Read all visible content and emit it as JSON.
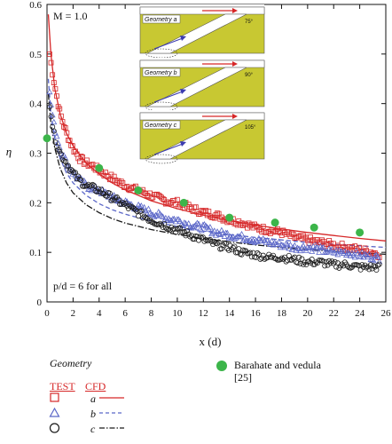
{
  "chart_data": {
    "type": "scatter",
    "xlabel": "x (d)",
    "ylabel": "η",
    "xlim": [
      0,
      26
    ],
    "ylim": [
      0,
      0.6
    ],
    "xticks": [
      "0",
      "2",
      "4",
      "6",
      "8",
      "10",
      "12",
      "14",
      "16",
      "18",
      "20",
      "22",
      "24",
      "26"
    ],
    "yticks": [
      "0",
      "0.1",
      "0.2",
      "0.3",
      "0.4",
      "0.5",
      "0.6"
    ],
    "annotations": {
      "mach": "M = 1.0",
      "pd": "p/d = 6 for all"
    },
    "insets": [
      {
        "label": "Geometry a",
        "angle": "75°"
      },
      {
        "label": "Geometry b",
        "angle": "90°"
      },
      {
        "label": "Geometry c",
        "angle": "105°"
      }
    ],
    "legend": {
      "title": "Geometry",
      "test_header": "TEST",
      "cfd_header": "CFD",
      "rows": [
        {
          "name": "a",
          "marker": "square",
          "line": "solid"
        },
        {
          "name": "b",
          "marker": "triangle",
          "line": "dashed"
        },
        {
          "name": "c",
          "marker": "circle",
          "line": "dashdot"
        }
      ],
      "reference": "Barahate and vedula [25]"
    },
    "colors": {
      "a": "#d62728",
      "b": "#5b67c8",
      "c": "#1a1a1a",
      "reference": "#3cb54a",
      "inset_fill": "#c8c832"
    },
    "series": [
      {
        "name": "a",
        "kind": "test",
        "x": [
          0.2,
          0.5,
          1,
          1.5,
          2,
          2.5,
          3,
          3.5,
          4,
          5,
          6,
          7,
          8,
          9,
          10,
          11,
          12,
          13,
          14,
          15,
          16,
          17,
          18,
          19,
          20,
          21,
          22,
          23,
          24,
          25,
          25.6
        ],
        "y": [
          0.5,
          0.45,
          0.38,
          0.34,
          0.31,
          0.29,
          0.28,
          0.275,
          0.265,
          0.25,
          0.235,
          0.225,
          0.215,
          0.205,
          0.2,
          0.19,
          0.18,
          0.175,
          0.165,
          0.16,
          0.15,
          0.145,
          0.14,
          0.13,
          0.125,
          0.12,
          0.115,
          0.11,
          0.105,
          0.1,
          0.095
        ]
      },
      {
        "name": "b",
        "kind": "test",
        "x": [
          0.2,
          0.5,
          1,
          1.5,
          2,
          2.5,
          3,
          3.5,
          4,
          5,
          6,
          7,
          8,
          9,
          10,
          11,
          12,
          13,
          14,
          15,
          16,
          17,
          18,
          19,
          20,
          21,
          22,
          23,
          24,
          25,
          25.6
        ],
        "y": [
          0.42,
          0.36,
          0.31,
          0.28,
          0.26,
          0.245,
          0.235,
          0.228,
          0.225,
          0.21,
          0.2,
          0.19,
          0.18,
          0.17,
          0.165,
          0.155,
          0.15,
          0.14,
          0.135,
          0.13,
          0.125,
          0.12,
          0.115,
          0.11,
          0.11,
          0.105,
          0.1,
          0.1,
          0.095,
          0.09,
          0.088
        ]
      },
      {
        "name": "c",
        "kind": "test",
        "x": [
          0.2,
          0.5,
          1,
          1.5,
          2,
          2.5,
          3,
          3.5,
          4,
          5,
          6,
          7,
          8,
          9,
          10,
          11,
          12,
          13,
          14,
          15,
          16,
          17,
          18,
          19,
          20,
          21,
          22,
          23,
          24,
          25,
          25.6
        ],
        "y": [
          0.4,
          0.34,
          0.3,
          0.28,
          0.26,
          0.245,
          0.235,
          0.23,
          0.225,
          0.21,
          0.195,
          0.18,
          0.165,
          0.155,
          0.145,
          0.135,
          0.125,
          0.115,
          0.11,
          0.1,
          0.095,
          0.09,
          0.09,
          0.085,
          0.08,
          0.08,
          0.075,
          0.075,
          0.07,
          0.07,
          0.07
        ]
      },
      {
        "name": "a",
        "kind": "cfd",
        "x": [
          0.1,
          0.3,
          0.6,
          1,
          1.5,
          2,
          3,
          4,
          5,
          6,
          8,
          10,
          12,
          14,
          16,
          18,
          20,
          22,
          24,
          26
        ],
        "y": [
          0.58,
          0.5,
          0.43,
          0.38,
          0.34,
          0.315,
          0.28,
          0.258,
          0.24,
          0.226,
          0.204,
          0.188,
          0.175,
          0.164,
          0.155,
          0.147,
          0.14,
          0.134,
          0.128,
          0.123
        ]
      },
      {
        "name": "b",
        "kind": "cfd",
        "x": [
          0.1,
          0.3,
          0.6,
          1,
          1.5,
          2,
          3,
          4,
          5,
          6,
          8,
          10,
          12,
          14,
          16,
          18,
          20,
          22,
          24,
          26
        ],
        "y": [
          0.45,
          0.38,
          0.33,
          0.29,
          0.26,
          0.24,
          0.215,
          0.198,
          0.186,
          0.177,
          0.163,
          0.152,
          0.143,
          0.136,
          0.13,
          0.125,
          0.12,
          0.116,
          0.113,
          0.11
        ]
      },
      {
        "name": "c",
        "kind": "cfd",
        "x": [
          0.1,
          0.3,
          0.6,
          1,
          1.5,
          2,
          3,
          4,
          5,
          6,
          8,
          10,
          12,
          14,
          16,
          18,
          20,
          22,
          24,
          26
        ],
        "y": [
          0.42,
          0.36,
          0.31,
          0.27,
          0.24,
          0.22,
          0.196,
          0.18,
          0.168,
          0.159,
          0.146,
          0.136,
          0.128,
          0.121,
          0.115,
          0.11,
          0.106,
          0.102,
          0.099,
          0.096
        ]
      },
      {
        "name": "Barahate and vedula [25]",
        "kind": "reference",
        "x": [
          0,
          4,
          7,
          10.5,
          14,
          17.5,
          20.5,
          24
        ],
        "y": [
          0.33,
          0.27,
          0.225,
          0.2,
          0.17,
          0.16,
          0.15,
          0.14
        ]
      }
    ]
  }
}
